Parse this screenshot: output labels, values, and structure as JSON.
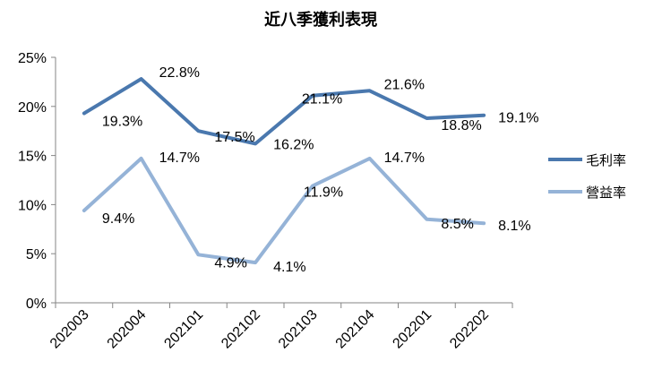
{
  "chart_data": {
    "type": "line",
    "title": "近八季獲利表現",
    "categories": [
      "202003",
      "202004",
      "202101",
      "202102",
      "202103",
      "202104",
      "202201",
      "202202"
    ],
    "ylim": [
      0,
      25
    ],
    "yticks": [
      0,
      5,
      10,
      15,
      20,
      25
    ],
    "ytick_labels": [
      "0%",
      "5%",
      "10%",
      "15%",
      "20%",
      "25%"
    ],
    "legend_position": "right",
    "series": [
      {
        "name": "毛利率",
        "color": "#4a78ae",
        "values": [
          19.3,
          22.8,
          17.5,
          16.2,
          21.1,
          21.6,
          18.8,
          19.1
        ],
        "labels": [
          "19.3%",
          "22.8%",
          "17.5%",
          "16.2%",
          "21.1%",
          "21.6%",
          "18.8%",
          "19.1%"
        ]
      },
      {
        "name": "營益率",
        "color": "#95b3d7",
        "values": [
          9.4,
          14.7,
          4.9,
          4.1,
          11.9,
          14.7,
          8.5,
          8.1
        ],
        "labels": [
          "9.4%",
          "14.7%",
          "4.9%",
          "4.1%",
          "11.9%",
          "14.7%",
          "8.5%",
          "8.1%"
        ]
      }
    ]
  }
}
